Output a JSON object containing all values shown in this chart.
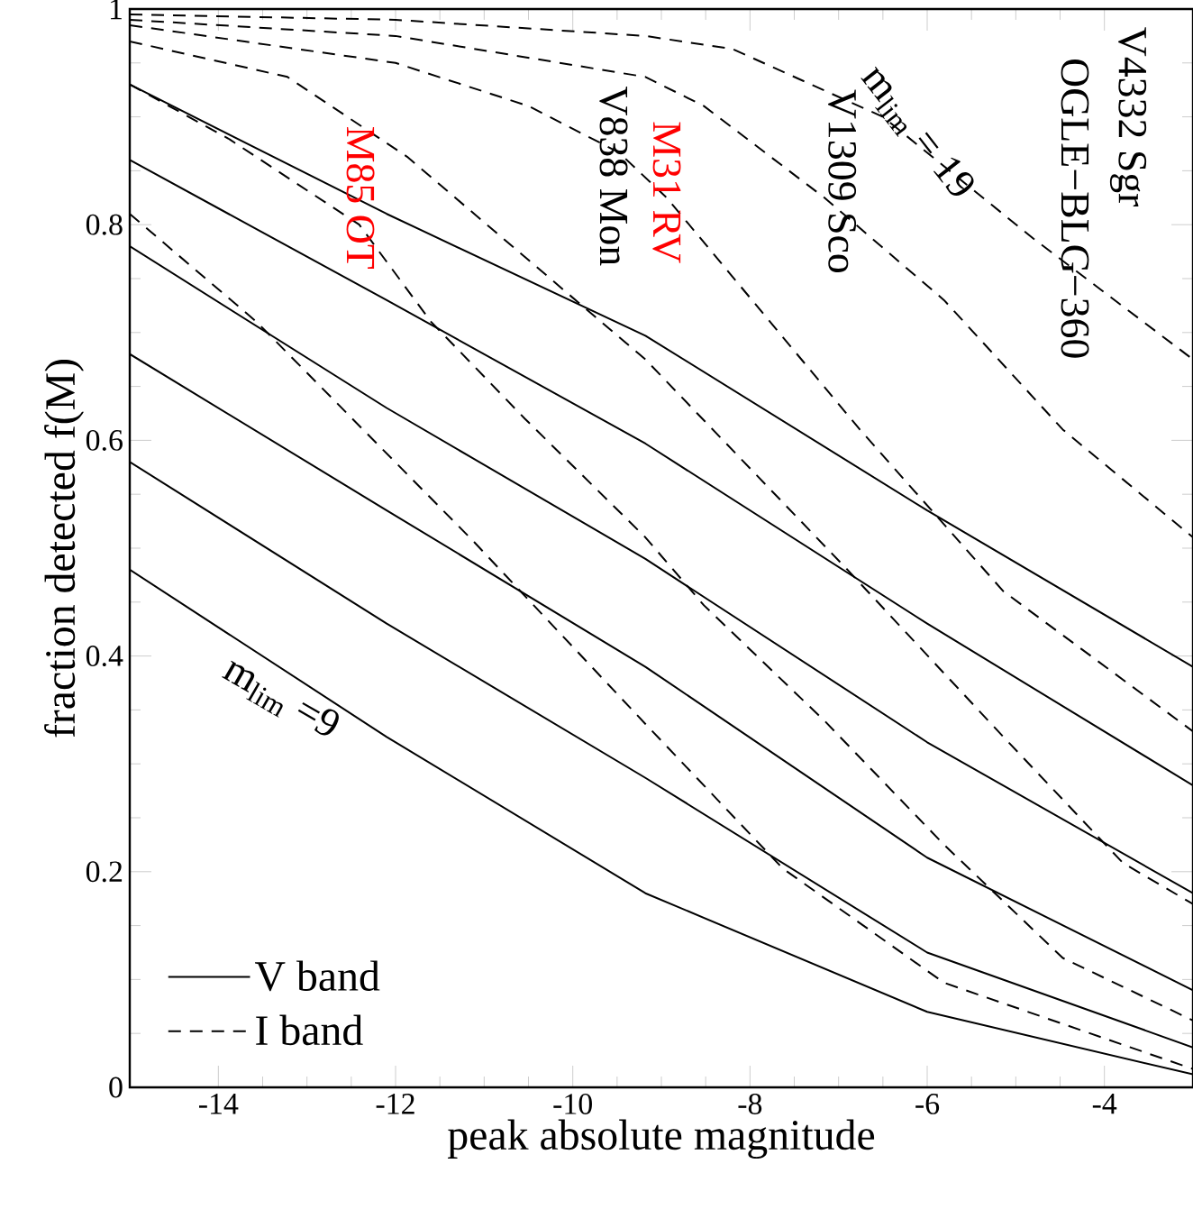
{
  "chart_data": {
    "type": "line",
    "xlabel": "peak absolute magnitude",
    "ylabel": "fraction detected f(M)",
    "xlim": [
      -15,
      -3
    ],
    "ylim": [
      0,
      1
    ],
    "xticks": [
      -14,
      -12,
      -10,
      -8,
      -6,
      -4
    ],
    "yticks": [
      0,
      0.2,
      0.4,
      0.6,
      0.8,
      1
    ],
    "grid": false,
    "legend": "bottom left",
    "marker": "none",
    "series": [
      {
        "name": "V band",
        "color": "#000000",
        "line_style": "solid",
        "x": [
          -15,
          -12.1,
          -9.18,
          -6,
          -3
        ],
        "values": [
          0.93,
          0.81,
          0.697,
          0.535,
          0.39
        ]
      },
      {
        "color": "#000000",
        "line_style": "solid",
        "x": [
          -15,
          -12.1,
          -9.18,
          -6,
          -3
        ],
        "values": [
          0.86,
          0.73,
          0.597,
          0.43,
          0.28
        ]
      },
      {
        "color": "#000000",
        "line_style": "solid",
        "x": [
          -15,
          -12.1,
          -9.18,
          -6,
          -3
        ],
        "values": [
          0.78,
          0.63,
          0.49,
          0.32,
          0.18
        ]
      },
      {
        "color": "#000000",
        "line_style": "solid",
        "x": [
          -15,
          -12.1,
          -9.18,
          -6,
          -3
        ],
        "values": [
          0.68,
          0.535,
          0.39,
          0.213,
          0.09
        ]
      },
      {
        "color": "#000000",
        "line_style": "solid",
        "x": [
          -15,
          -12.1,
          -9.18,
          -6,
          -3
        ],
        "values": [
          0.58,
          0.43,
          0.287,
          0.125,
          0.037
        ]
      },
      {
        "color": "#000000",
        "line_style": "solid",
        "x": [
          -15,
          -12.1,
          -9.18,
          -6,
          -3
        ],
        "values": [
          0.48,
          0.325,
          0.18,
          0.07,
          0.012
        ]
      },
      {
        "name": "I band",
        "color": "#000000",
        "line_style": "dashed",
        "x": [
          -15,
          -12,
          -9.18,
          -8.2,
          -6.5,
          -4.8,
          -3
        ],
        "values": [
          0.995,
          0.99,
          0.975,
          0.963,
          0.9,
          0.787,
          0.675
        ]
      },
      {
        "color": "#000000",
        "line_style": "dashed",
        "x": [
          -15,
          -12,
          -9.18,
          -8.52,
          -7.16,
          -5.81,
          -4.47,
          -3
        ],
        "values": [
          0.99,
          0.975,
          0.937,
          0.91,
          0.825,
          0.73,
          0.61,
          0.51
        ]
      },
      {
        "color": "#000000",
        "line_style": "dashed",
        "x": [
          -15,
          -12,
          -10.5,
          -9.48,
          -8.94,
          -6.76,
          -5.14,
          -3
        ],
        "values": [
          0.985,
          0.95,
          0.91,
          0.867,
          0.825,
          0.61,
          0.46,
          0.33
        ]
      },
      {
        "color": "#000000",
        "line_style": "dashed",
        "x": [
          -15,
          -13.22,
          -11.87,
          -10.54,
          -9.18,
          -6.9,
          -5.14,
          -3.79,
          -3
        ],
        "values": [
          0.97,
          0.937,
          0.863,
          0.77,
          0.675,
          0.48,
          0.325,
          0.208,
          0.17
        ]
      },
      {
        "color": "#000000",
        "line_style": "dashed",
        "x": [
          -15,
          -13.89,
          -12.41,
          -11.6,
          -10.54,
          -9.18,
          -8.52,
          -7.16,
          -5.81,
          -4.47,
          -3
        ],
        "values": [
          0.93,
          0.88,
          0.8,
          0.71,
          0.62,
          0.51,
          0.447,
          0.34,
          0.225,
          0.12,
          0.062
        ]
      },
      {
        "color": "#000000",
        "line_style": "dashed",
        "x": [
          -15,
          -13.57,
          -11.14,
          -9.18,
          -7.63,
          -5.81,
          -3
        ],
        "values": [
          0.81,
          0.71,
          0.508,
          0.337,
          0.203,
          0.097,
          0.017
        ]
      }
    ],
    "annotations": [
      "M85 OT",
      "M31 RV",
      "V838 Mon",
      "V1309 Sco",
      "V4332 Sgr",
      "OGLE−BLG−360",
      "m$_{lim}$ = 19",
      "m$_{lim}$ =9"
    ]
  }
}
